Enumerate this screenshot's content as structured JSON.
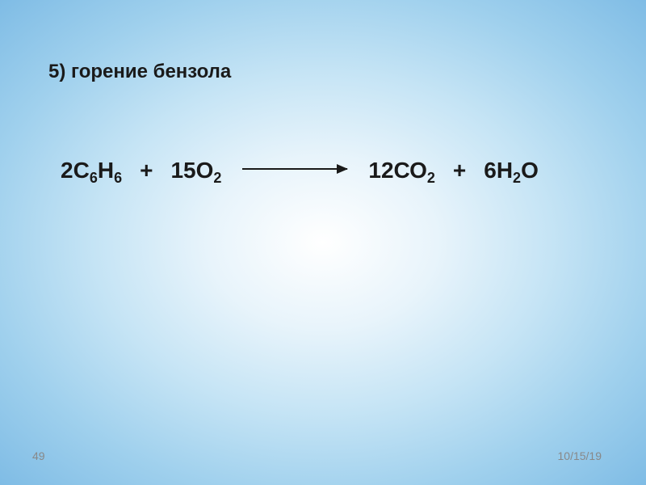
{
  "title": "5) горение бензола",
  "equation": {
    "reactant1": {
      "coefficient": "2",
      "formula_parts": [
        {
          "text": "С",
          "sub": false
        },
        {
          "text": "6",
          "sub": true
        },
        {
          "text": "Н",
          "sub": false
        },
        {
          "text": "6",
          "sub": true
        }
      ]
    },
    "reactant2": {
      "coefficient": "15",
      "formula_parts": [
        {
          "text": "О",
          "sub": false
        },
        {
          "text": "2",
          "sub": true
        }
      ]
    },
    "product1": {
      "coefficient": "12",
      "formula_parts": [
        {
          "text": "СО",
          "sub": false
        },
        {
          "text": "2",
          "sub": true
        }
      ]
    },
    "product2": {
      "coefficient": "6",
      "formula_parts": [
        {
          "text": "Н",
          "sub": false
        },
        {
          "text": "2",
          "sub": true
        },
        {
          "text": "О",
          "sub": false
        }
      ]
    },
    "plus_symbol": "+"
  },
  "page_number": "49",
  "date": "10/15/19",
  "styling": {
    "background_gradient_colors": [
      "#ffffff",
      "#e8f4fb",
      "#c5e4f5",
      "#9fd0ed",
      "#7fbce5"
    ],
    "title_color": "#1a1a1a",
    "title_fontsize": 24,
    "equation_color": "#1a1a1a",
    "equation_fontsize": 28,
    "subscript_fontsize": 18,
    "arrow_color": "#1a1a1a",
    "arrow_width": 130,
    "footer_color": "#888888",
    "footer_fontsize": 14
  }
}
